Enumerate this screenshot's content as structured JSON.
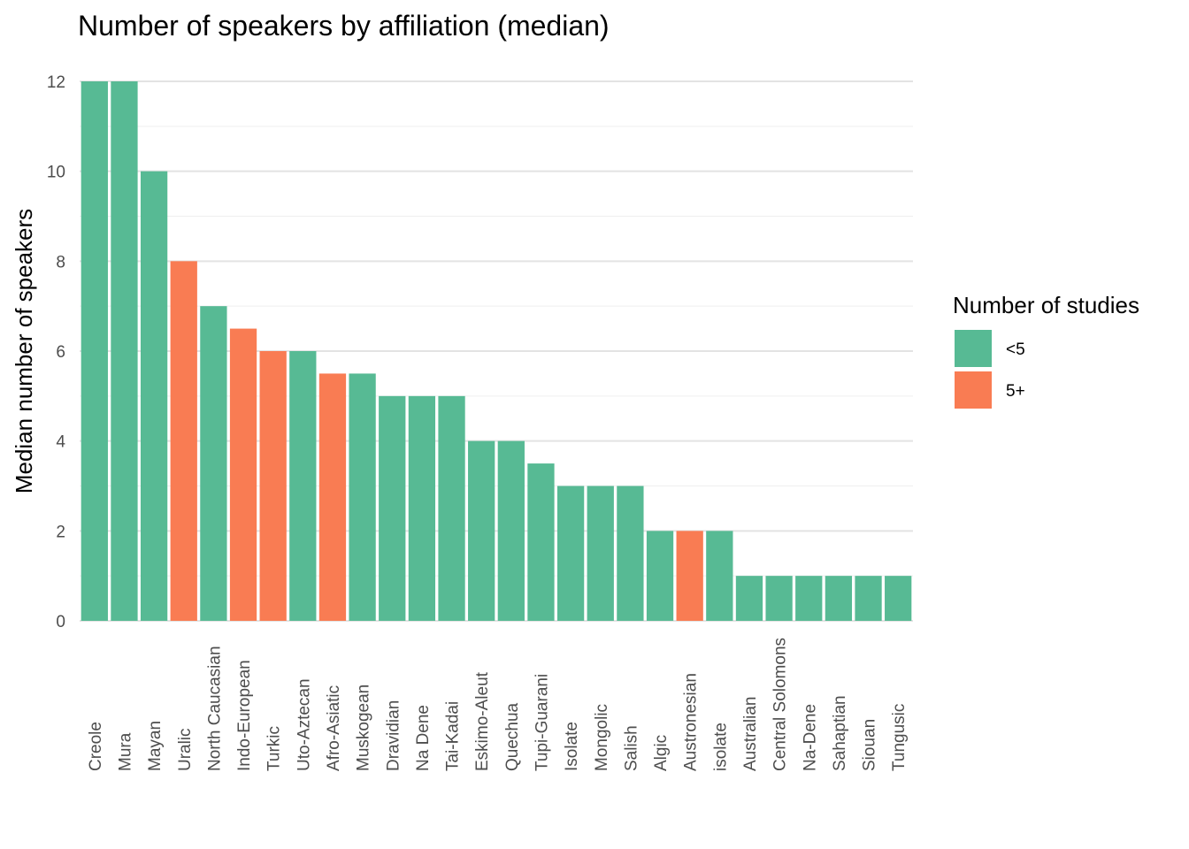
{
  "chart_data": {
    "type": "bar",
    "title": "Number of speakers by affiliation (median)",
    "xlabel": "",
    "ylabel": "Median number of speakers",
    "ylim": [
      0,
      12
    ],
    "yticks": [
      0,
      2,
      4,
      6,
      8,
      10,
      12
    ],
    "grid": true,
    "legend": {
      "title": "Number of studies",
      "placement": "right",
      "entries": [
        {
          "label": "<5",
          "color": "#57ba94"
        },
        {
          "label": "5+",
          "color": "#f97c53"
        }
      ]
    },
    "categories": [
      "Creole",
      "Mura",
      "Mayan",
      "Uralic",
      "North Caucasian",
      "Indo-European",
      "Turkic",
      "Uto-Aztecan",
      "Afro-Asiatic",
      "Muskogean",
      "Dravidian",
      "Na Dene",
      "Tai-Kadai",
      "Eskimo-Aleut",
      "Quechua",
      "Tupi-Guarani",
      "Isolate",
      "Mongolic",
      "Salish",
      "Algic",
      "Austronesian",
      "isolate",
      "Australian",
      "Central Solomons",
      "Na-Dene",
      "Sahaptian",
      "Siouan",
      "Tungusic"
    ],
    "values": [
      12,
      12,
      10,
      8,
      7,
      6.5,
      6,
      6,
      5.5,
      5.5,
      5,
      5,
      5,
      4,
      4,
      3.5,
      3,
      3,
      3,
      2,
      2,
      2,
      1,
      1,
      1,
      1,
      1,
      1
    ],
    "groups": [
      "<5",
      "<5",
      "<5",
      "5+",
      "<5",
      "5+",
      "5+",
      "<5",
      "5+",
      "<5",
      "<5",
      "<5",
      "<5",
      "<5",
      "<5",
      "<5",
      "<5",
      "<5",
      "<5",
      "<5",
      "5+",
      "<5",
      "<5",
      "<5",
      "<5",
      "<5",
      "<5",
      "<5"
    ]
  }
}
